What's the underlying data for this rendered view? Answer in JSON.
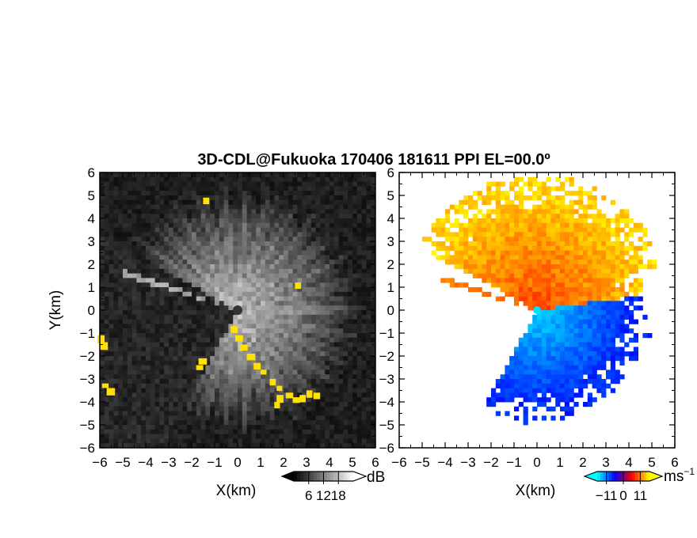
{
  "chart_data": {
    "title": "3D-CDL@Fukuoka 170406 181611 PPI EL=00.0º",
    "panels": [
      {
        "type": "heatmap",
        "name": "snr",
        "xlabel": "X(km)",
        "ylabel": "Y(km)",
        "xlim": [
          -6,
          6
        ],
        "ylim": [
          -6,
          6
        ],
        "xticks": [
          "−6",
          "−5",
          "−4",
          "−3",
          "−2",
          "−1",
          "0",
          "1",
          "2",
          "3",
          "4",
          "5",
          "6"
        ],
        "yticks": [
          "6",
          "5",
          "4",
          "3",
          "2",
          "1",
          "0",
          "−1",
          "−2",
          "−3",
          "−4",
          "−5",
          "−6"
        ],
        "colorbar": {
          "unit": "dB",
          "ticks": [
            "6",
            "12",
            "18"
          ],
          "range": [
            0,
            24
          ],
          "colormap": [
            "#000000",
            "#ffffff"
          ]
        },
        "highlight_color": "#ffe000"
      },
      {
        "type": "heatmap",
        "name": "velocity",
        "xlabel": "X(km)",
        "ylabel": "",
        "xlim": [
          -6,
          6
        ],
        "ylim": [
          -6,
          6
        ],
        "xticks": [
          "−6",
          "−5",
          "−4",
          "−3",
          "−2",
          "−1",
          "0",
          "1",
          "2",
          "3",
          "4",
          "5",
          "6"
        ],
        "yticks": [
          "6",
          "5",
          "4",
          "3",
          "2",
          "1",
          "0",
          "−1",
          "−2",
          "−3",
          "−4",
          "−5",
          "−6"
        ],
        "colorbar": {
          "unit": "ms",
          "unit_exp": "−1",
          "ticks": [
            "−11",
            "0",
            "11"
          ],
          "range": [
            -17,
            17
          ],
          "colormap": [
            "#00ffff",
            "#0000ff",
            "#ff0000",
            "#ffff00"
          ]
        }
      }
    ]
  }
}
